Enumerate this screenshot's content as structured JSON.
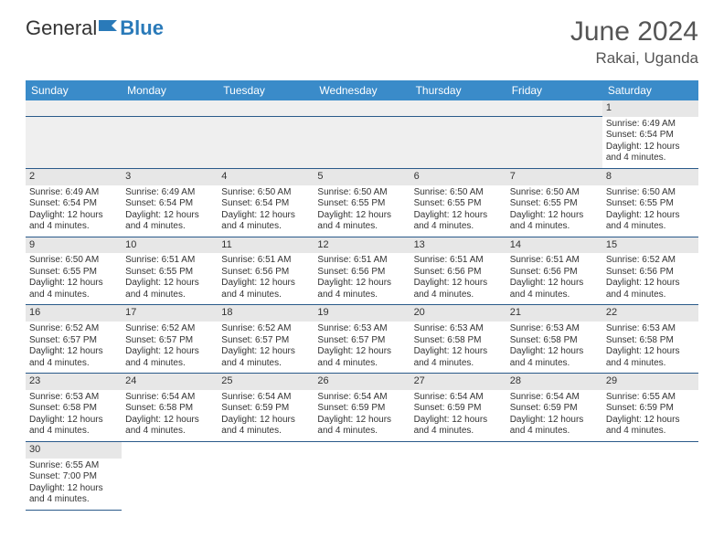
{
  "brand": {
    "part1": "General",
    "part2": "Blue"
  },
  "title": "June 2024",
  "location": "Rakai, Uganda",
  "colors": {
    "header_bg": "#3a8bc9",
    "header_text": "#ffffff",
    "daynum_bg": "#e7e7e7",
    "cell_border": "#2a5a8a",
    "body_text": "#333333",
    "title_text": "#555555",
    "brand_accent": "#2a7ab9"
  },
  "weekdays": [
    "Sunday",
    "Monday",
    "Tuesday",
    "Wednesday",
    "Thursday",
    "Friday",
    "Saturday"
  ],
  "lead_blank": 6,
  "days": [
    {
      "n": 1,
      "sunrise": "6:49 AM",
      "sunset": "6:54 PM",
      "daylight": "12 hours and 4 minutes."
    },
    {
      "n": 2,
      "sunrise": "6:49 AM",
      "sunset": "6:54 PM",
      "daylight": "12 hours and 4 minutes."
    },
    {
      "n": 3,
      "sunrise": "6:49 AM",
      "sunset": "6:54 PM",
      "daylight": "12 hours and 4 minutes."
    },
    {
      "n": 4,
      "sunrise": "6:50 AM",
      "sunset": "6:54 PM",
      "daylight": "12 hours and 4 minutes."
    },
    {
      "n": 5,
      "sunrise": "6:50 AM",
      "sunset": "6:55 PM",
      "daylight": "12 hours and 4 minutes."
    },
    {
      "n": 6,
      "sunrise": "6:50 AM",
      "sunset": "6:55 PM",
      "daylight": "12 hours and 4 minutes."
    },
    {
      "n": 7,
      "sunrise": "6:50 AM",
      "sunset": "6:55 PM",
      "daylight": "12 hours and 4 minutes."
    },
    {
      "n": 8,
      "sunrise": "6:50 AM",
      "sunset": "6:55 PM",
      "daylight": "12 hours and 4 minutes."
    },
    {
      "n": 9,
      "sunrise": "6:50 AM",
      "sunset": "6:55 PM",
      "daylight": "12 hours and 4 minutes."
    },
    {
      "n": 10,
      "sunrise": "6:51 AM",
      "sunset": "6:55 PM",
      "daylight": "12 hours and 4 minutes."
    },
    {
      "n": 11,
      "sunrise": "6:51 AM",
      "sunset": "6:56 PM",
      "daylight": "12 hours and 4 minutes."
    },
    {
      "n": 12,
      "sunrise": "6:51 AM",
      "sunset": "6:56 PM",
      "daylight": "12 hours and 4 minutes."
    },
    {
      "n": 13,
      "sunrise": "6:51 AM",
      "sunset": "6:56 PM",
      "daylight": "12 hours and 4 minutes."
    },
    {
      "n": 14,
      "sunrise": "6:51 AM",
      "sunset": "6:56 PM",
      "daylight": "12 hours and 4 minutes."
    },
    {
      "n": 15,
      "sunrise": "6:52 AM",
      "sunset": "6:56 PM",
      "daylight": "12 hours and 4 minutes."
    },
    {
      "n": 16,
      "sunrise": "6:52 AM",
      "sunset": "6:57 PM",
      "daylight": "12 hours and 4 minutes."
    },
    {
      "n": 17,
      "sunrise": "6:52 AM",
      "sunset": "6:57 PM",
      "daylight": "12 hours and 4 minutes."
    },
    {
      "n": 18,
      "sunrise": "6:52 AM",
      "sunset": "6:57 PM",
      "daylight": "12 hours and 4 minutes."
    },
    {
      "n": 19,
      "sunrise": "6:53 AM",
      "sunset": "6:57 PM",
      "daylight": "12 hours and 4 minutes."
    },
    {
      "n": 20,
      "sunrise": "6:53 AM",
      "sunset": "6:58 PM",
      "daylight": "12 hours and 4 minutes."
    },
    {
      "n": 21,
      "sunrise": "6:53 AM",
      "sunset": "6:58 PM",
      "daylight": "12 hours and 4 minutes."
    },
    {
      "n": 22,
      "sunrise": "6:53 AM",
      "sunset": "6:58 PM",
      "daylight": "12 hours and 4 minutes."
    },
    {
      "n": 23,
      "sunrise": "6:53 AM",
      "sunset": "6:58 PM",
      "daylight": "12 hours and 4 minutes."
    },
    {
      "n": 24,
      "sunrise": "6:54 AM",
      "sunset": "6:58 PM",
      "daylight": "12 hours and 4 minutes."
    },
    {
      "n": 25,
      "sunrise": "6:54 AM",
      "sunset": "6:59 PM",
      "daylight": "12 hours and 4 minutes."
    },
    {
      "n": 26,
      "sunrise": "6:54 AM",
      "sunset": "6:59 PM",
      "daylight": "12 hours and 4 minutes."
    },
    {
      "n": 27,
      "sunrise": "6:54 AM",
      "sunset": "6:59 PM",
      "daylight": "12 hours and 4 minutes."
    },
    {
      "n": 28,
      "sunrise": "6:54 AM",
      "sunset": "6:59 PM",
      "daylight": "12 hours and 4 minutes."
    },
    {
      "n": 29,
      "sunrise": "6:55 AM",
      "sunset": "6:59 PM",
      "daylight": "12 hours and 4 minutes."
    },
    {
      "n": 30,
      "sunrise": "6:55 AM",
      "sunset": "7:00 PM",
      "daylight": "12 hours and 4 minutes."
    }
  ],
  "labels": {
    "sunrise": "Sunrise:",
    "sunset": "Sunset:",
    "daylight": "Daylight:"
  }
}
